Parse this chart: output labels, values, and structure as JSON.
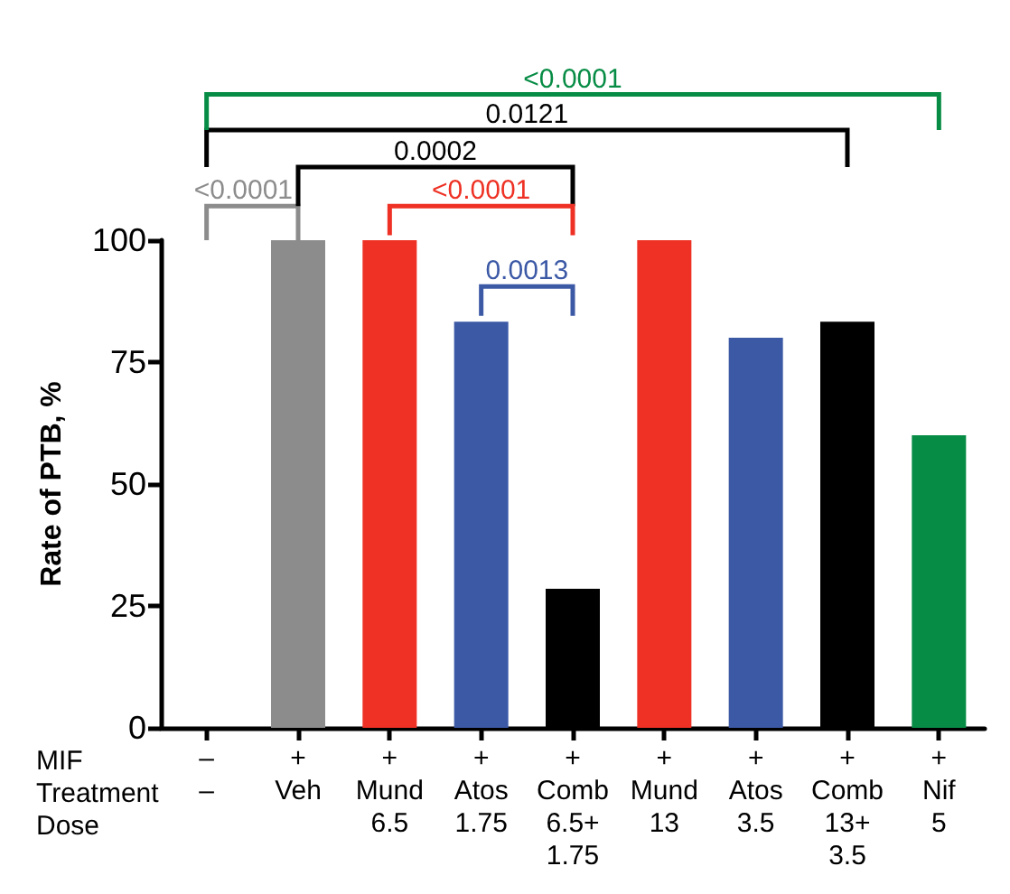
{
  "chart_data": {
    "type": "bar",
    "ylabel": "Rate of PTB, %",
    "categories": [
      "–\n–",
      "+\nVeh",
      "+\nMund\n6.5",
      "+\nAtos\n1.75",
      "+\nComb\n6.5+\n1.75",
      "+\nMund\n13",
      "+\nAtos\n3.5",
      "+\nComb\n13+\n3.5",
      "+\nNif\n5"
    ],
    "values": [
      0,
      100,
      100,
      83.3,
      28.5,
      100,
      80,
      83.3,
      60
    ],
    "colors": [
      "#8c8c8c",
      "#8c8c8c",
      "#ee3124",
      "#3c59a6",
      "#000000",
      "#ee3124",
      "#3c59a6",
      "#000000",
      "#078c45"
    ],
    "ylim": [
      0,
      100
    ],
    "yticks": [
      0,
      25,
      50,
      75,
      100
    ],
    "annotations": [
      "MIF",
      "Treatment",
      "Dose",
      "<0.0001",
      "0.0002",
      "<0.0001",
      "0.0013",
      "0.0121",
      "<0.0001"
    ]
  }
}
